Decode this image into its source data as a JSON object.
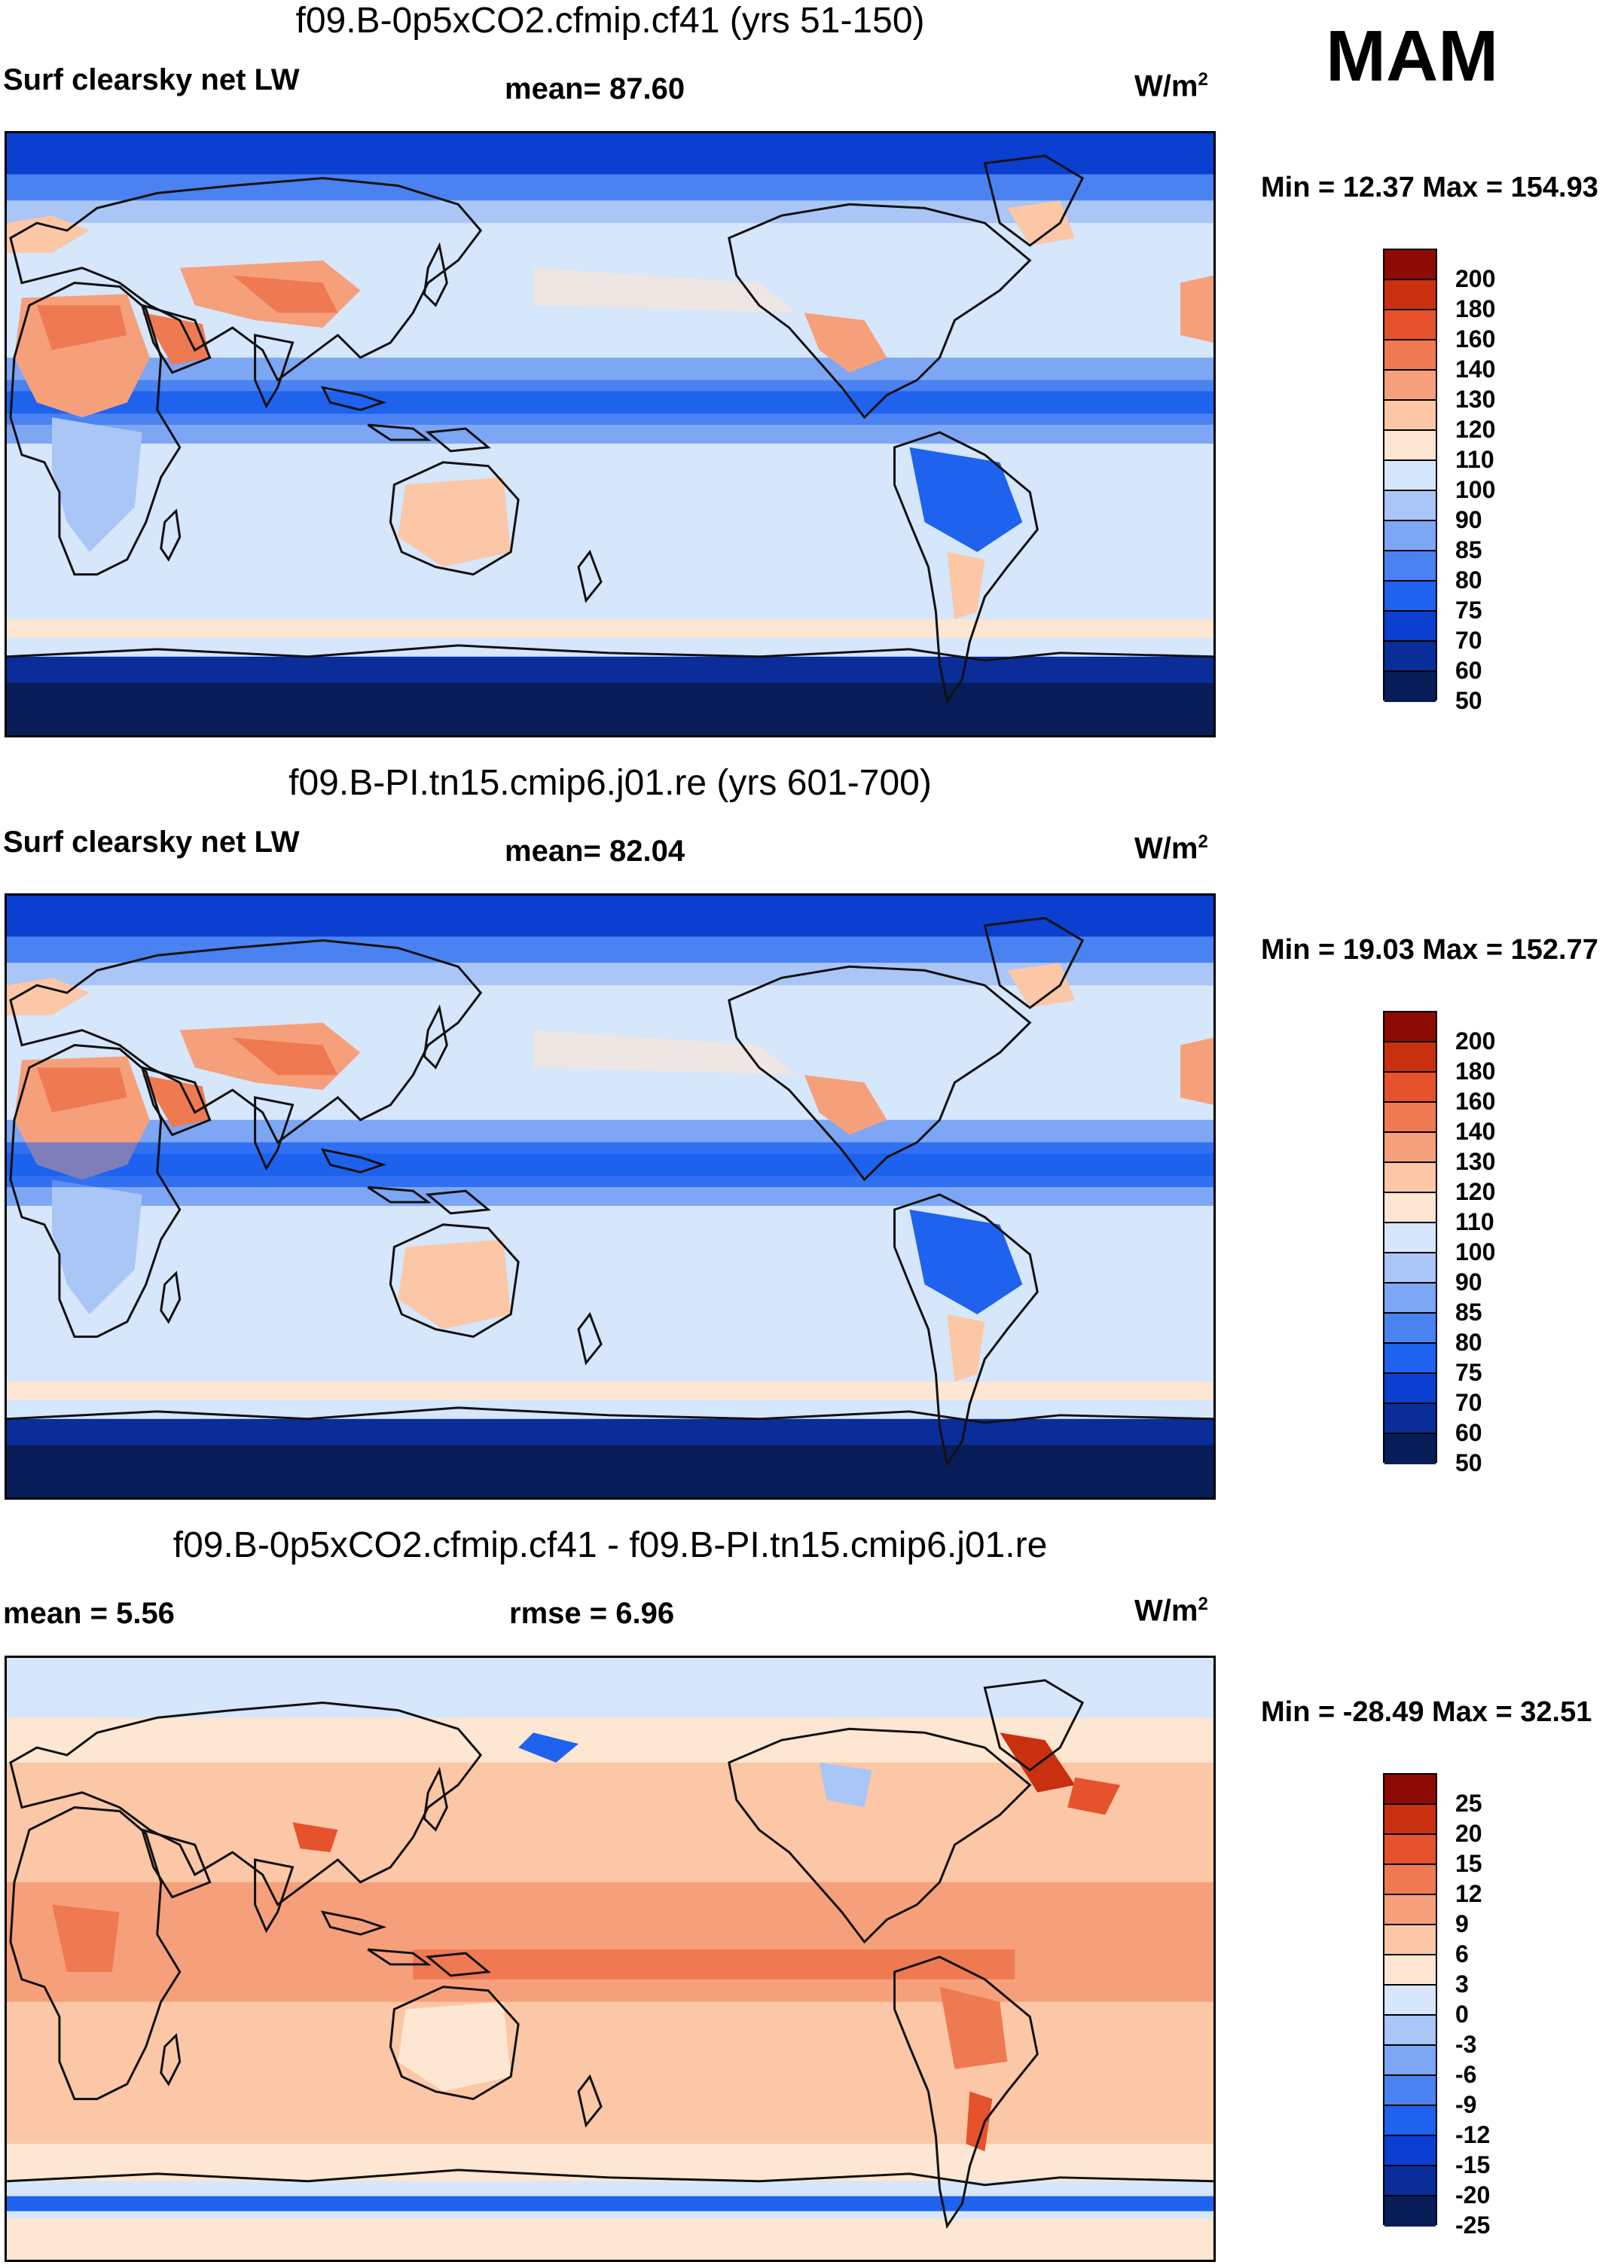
{
  "season": "MAM",
  "palette_full": [
    "#081d58",
    "#0a2d9a",
    "#0b3fd0",
    "#1e62ee",
    "#4a82f2",
    "#7da6f4",
    "#a9c6f6",
    "#d6e6fb",
    "#fde6d2",
    "#fbc7a6",
    "#f6a07b",
    "#ef7a52",
    "#e6522b",
    "#c9300f",
    "#8c0b05"
  ],
  "palette_diff": [
    "#081d58",
    "#0a2d9a",
    "#0b3fd0",
    "#1e62ee",
    "#4a82f2",
    "#7da6f4",
    "#a9c6f6",
    "#d6e6fb",
    "#fde6d2",
    "#fbc7a6",
    "#f6a07b",
    "#ef7a52",
    "#e6522b",
    "#c9300f",
    "#8c0b05"
  ],
  "panels": [
    {
      "title": "f09.B-0p5xCO2.cfmip.cf41 (yrs 51-150)",
      "left_label": "Surf clearsky net LW",
      "center_label": "mean=  87.60",
      "units": "W/m",
      "units_sup": "2",
      "minmax": "Min =  12.37 Max = 154.93",
      "ticks": [
        "200",
        "180",
        "160",
        "140",
        "130",
        "120",
        "110",
        "100",
        "90",
        "85",
        "80",
        "75",
        "70",
        "60",
        "50"
      ]
    },
    {
      "title": "f09.B-PI.tn15.cmip6.j01.re (yrs 601-700)",
      "left_label": "Surf clearsky net LW",
      "center_label": "mean=  82.04",
      "units": "W/m",
      "units_sup": "2",
      "minmax": "Min =  19.03 Max = 152.77",
      "ticks": [
        "200",
        "180",
        "160",
        "140",
        "130",
        "120",
        "110",
        "100",
        "90",
        "85",
        "80",
        "75",
        "70",
        "60",
        "50"
      ]
    },
    {
      "title": "f09.B-0p5xCO2.cfmip.cf41 - f09.B-PI.tn15.cmip6.j01.re",
      "left_label": "mean =    5.56",
      "center_label": "rmse =    6.96",
      "units": "W/m",
      "units_sup": "2",
      "minmax": "Min = -28.49 Max =  32.51",
      "ticks": [
        "25",
        "20",
        "15",
        "12",
        "9",
        "6",
        "3",
        "0",
        "-3",
        "-6",
        "-9",
        "-12",
        "-15",
        "-20",
        "-25"
      ]
    }
  ]
}
